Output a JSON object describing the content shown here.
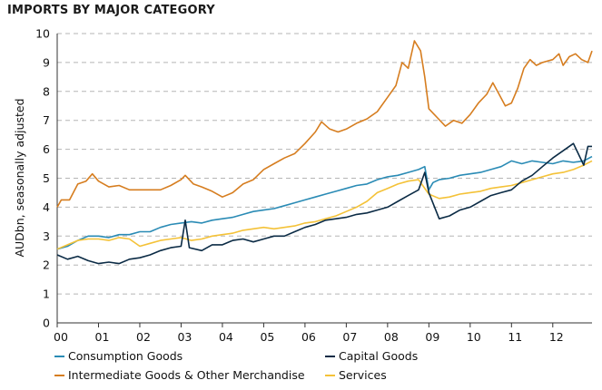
{
  "chart_data": {
    "type": "line",
    "title": "IMPORTS BY MAJOR CATEGORY",
    "xlabel": "",
    "ylabel": "AUDbn, seasonally adjusted",
    "xlim": [
      2000.0,
      2012.95
    ],
    "ylim": [
      0,
      10
    ],
    "yticks": [
      0,
      1,
      2,
      3,
      4,
      5,
      6,
      7,
      8,
      9,
      10
    ],
    "xtick_labels": [
      "00",
      "01",
      "02",
      "03",
      "04",
      "05",
      "06",
      "07",
      "08",
      "09",
      "10",
      "11",
      "12"
    ],
    "grid": true,
    "legend_position": "bottom",
    "series": [
      {
        "name": "Consumption Goods",
        "color": "#2a8bb5",
        "points": [
          [
            2000.0,
            2.55
          ],
          [
            2000.25,
            2.65
          ],
          [
            2000.5,
            2.85
          ],
          [
            2000.75,
            3.0
          ],
          [
            2001.0,
            3.0
          ],
          [
            2001.25,
            2.95
          ],
          [
            2001.5,
            3.05
          ],
          [
            2001.75,
            3.05
          ],
          [
            2002.0,
            3.15
          ],
          [
            2002.25,
            3.15
          ],
          [
            2002.5,
            3.3
          ],
          [
            2002.75,
            3.4
          ],
          [
            2003.0,
            3.45
          ],
          [
            2003.25,
            3.5
          ],
          [
            2003.5,
            3.45
          ],
          [
            2003.75,
            3.55
          ],
          [
            2004.0,
            3.6
          ],
          [
            2004.25,
            3.65
          ],
          [
            2004.5,
            3.75
          ],
          [
            2004.75,
            3.85
          ],
          [
            2005.0,
            3.9
          ],
          [
            2005.25,
            3.95
          ],
          [
            2005.5,
            4.05
          ],
          [
            2005.75,
            4.15
          ],
          [
            2006.0,
            4.25
          ],
          [
            2006.25,
            4.35
          ],
          [
            2006.5,
            4.45
          ],
          [
            2006.75,
            4.55
          ],
          [
            2007.0,
            4.65
          ],
          [
            2007.25,
            4.75
          ],
          [
            2007.5,
            4.8
          ],
          [
            2007.75,
            4.95
          ],
          [
            2008.0,
            5.05
          ],
          [
            2008.25,
            5.1
          ],
          [
            2008.5,
            5.2
          ],
          [
            2008.75,
            5.3
          ],
          [
            2008.9,
            5.4
          ],
          [
            2009.0,
            4.6
          ],
          [
            2009.1,
            4.85
          ],
          [
            2009.25,
            4.95
          ],
          [
            2009.5,
            5.0
          ],
          [
            2009.75,
            5.1
          ],
          [
            2010.0,
            5.15
          ],
          [
            2010.25,
            5.2
          ],
          [
            2010.5,
            5.3
          ],
          [
            2010.75,
            5.4
          ],
          [
            2011.0,
            5.6
          ],
          [
            2011.25,
            5.5
          ],
          [
            2011.5,
            5.6
          ],
          [
            2011.75,
            5.55
          ],
          [
            2012.0,
            5.5
          ],
          [
            2012.25,
            5.6
          ],
          [
            2012.5,
            5.55
          ],
          [
            2012.75,
            5.6
          ],
          [
            2012.95,
            5.75
          ]
        ]
      },
      {
        "name": "Capital Goods",
        "color": "#0b2b45",
        "points": [
          [
            2000.0,
            2.35
          ],
          [
            2000.25,
            2.2
          ],
          [
            2000.5,
            2.3
          ],
          [
            2000.75,
            2.15
          ],
          [
            2001.0,
            2.05
          ],
          [
            2001.25,
            2.1
          ],
          [
            2001.5,
            2.05
          ],
          [
            2001.75,
            2.2
          ],
          [
            2002.0,
            2.25
          ],
          [
            2002.25,
            2.35
          ],
          [
            2002.5,
            2.5
          ],
          [
            2002.75,
            2.6
          ],
          [
            2003.0,
            2.65
          ],
          [
            2003.1,
            3.55
          ],
          [
            2003.2,
            2.6
          ],
          [
            2003.5,
            2.5
          ],
          [
            2003.75,
            2.7
          ],
          [
            2004.0,
            2.7
          ],
          [
            2004.25,
            2.85
          ],
          [
            2004.5,
            2.9
          ],
          [
            2004.75,
            2.8
          ],
          [
            2005.0,
            2.9
          ],
          [
            2005.25,
            3.0
          ],
          [
            2005.5,
            3.0
          ],
          [
            2005.75,
            3.15
          ],
          [
            2006.0,
            3.3
          ],
          [
            2006.25,
            3.4
          ],
          [
            2006.5,
            3.55
          ],
          [
            2006.75,
            3.6
          ],
          [
            2007.0,
            3.65
          ],
          [
            2007.25,
            3.75
          ],
          [
            2007.5,
            3.8
          ],
          [
            2007.75,
            3.9
          ],
          [
            2008.0,
            4.0
          ],
          [
            2008.25,
            4.2
          ],
          [
            2008.5,
            4.4
          ],
          [
            2008.75,
            4.6
          ],
          [
            2008.9,
            5.2
          ],
          [
            2009.0,
            4.5
          ],
          [
            2009.25,
            3.6
          ],
          [
            2009.5,
            3.7
          ],
          [
            2009.75,
            3.9
          ],
          [
            2010.0,
            4.0
          ],
          [
            2010.25,
            4.2
          ],
          [
            2010.5,
            4.4
          ],
          [
            2010.75,
            4.5
          ],
          [
            2011.0,
            4.6
          ],
          [
            2011.25,
            4.9
          ],
          [
            2011.5,
            5.1
          ],
          [
            2011.75,
            5.4
          ],
          [
            2012.0,
            5.7
          ],
          [
            2012.25,
            5.95
          ],
          [
            2012.5,
            6.2
          ],
          [
            2012.75,
            5.45
          ],
          [
            2012.85,
            6.1
          ],
          [
            2012.95,
            6.1
          ]
        ]
      },
      {
        "name": "Intermediate Goods & Other Merchandise",
        "color": "#d67d1f",
        "points": [
          [
            2000.0,
            4.0
          ],
          [
            2000.1,
            4.25
          ],
          [
            2000.3,
            4.25
          ],
          [
            2000.5,
            4.8
          ],
          [
            2000.7,
            4.9
          ],
          [
            2000.85,
            5.15
          ],
          [
            2001.0,
            4.9
          ],
          [
            2001.25,
            4.7
          ],
          [
            2001.5,
            4.75
          ],
          [
            2001.75,
            4.6
          ],
          [
            2002.0,
            4.6
          ],
          [
            2002.25,
            4.6
          ],
          [
            2002.5,
            4.6
          ],
          [
            2002.75,
            4.75
          ],
          [
            2003.0,
            4.95
          ],
          [
            2003.1,
            5.1
          ],
          [
            2003.3,
            4.8
          ],
          [
            2003.5,
            4.7
          ],
          [
            2003.75,
            4.55
          ],
          [
            2004.0,
            4.35
          ],
          [
            2004.25,
            4.5
          ],
          [
            2004.5,
            4.8
          ],
          [
            2004.75,
            4.95
          ],
          [
            2005.0,
            5.3
          ],
          [
            2005.25,
            5.5
          ],
          [
            2005.5,
            5.7
          ],
          [
            2005.75,
            5.85
          ],
          [
            2006.0,
            6.2
          ],
          [
            2006.25,
            6.6
          ],
          [
            2006.4,
            6.95
          ],
          [
            2006.6,
            6.7
          ],
          [
            2006.8,
            6.6
          ],
          [
            2007.0,
            6.7
          ],
          [
            2007.25,
            6.9
          ],
          [
            2007.5,
            7.05
          ],
          [
            2007.75,
            7.3
          ],
          [
            2008.0,
            7.8
          ],
          [
            2008.2,
            8.2
          ],
          [
            2008.35,
            9.0
          ],
          [
            2008.5,
            8.8
          ],
          [
            2008.65,
            9.75
          ],
          [
            2008.8,
            9.4
          ],
          [
            2008.9,
            8.5
          ],
          [
            2009.0,
            7.4
          ],
          [
            2009.2,
            7.1
          ],
          [
            2009.4,
            6.8
          ],
          [
            2009.6,
            7.0
          ],
          [
            2009.8,
            6.9
          ],
          [
            2010.0,
            7.2
          ],
          [
            2010.2,
            7.6
          ],
          [
            2010.4,
            7.9
          ],
          [
            2010.55,
            8.3
          ],
          [
            2010.7,
            7.9
          ],
          [
            2010.85,
            7.5
          ],
          [
            2011.0,
            7.6
          ],
          [
            2011.15,
            8.1
          ],
          [
            2011.3,
            8.8
          ],
          [
            2011.45,
            9.1
          ],
          [
            2011.6,
            8.9
          ],
          [
            2011.75,
            9.0
          ],
          [
            2012.0,
            9.1
          ],
          [
            2012.15,
            9.3
          ],
          [
            2012.25,
            8.9
          ],
          [
            2012.4,
            9.2
          ],
          [
            2012.55,
            9.3
          ],
          [
            2012.7,
            9.1
          ],
          [
            2012.85,
            9.0
          ],
          [
            2012.95,
            9.4
          ]
        ]
      },
      {
        "name": "Services",
        "color": "#f4c238",
        "points": [
          [
            2000.0,
            2.55
          ],
          [
            2000.25,
            2.7
          ],
          [
            2000.5,
            2.85
          ],
          [
            2000.75,
            2.9
          ],
          [
            2001.0,
            2.9
          ],
          [
            2001.25,
            2.85
          ],
          [
            2001.5,
            2.95
          ],
          [
            2001.75,
            2.9
          ],
          [
            2002.0,
            2.65
          ],
          [
            2002.25,
            2.75
          ],
          [
            2002.5,
            2.85
          ],
          [
            2002.75,
            2.9
          ],
          [
            2003.0,
            2.95
          ],
          [
            2003.25,
            2.85
          ],
          [
            2003.5,
            2.9
          ],
          [
            2003.75,
            3.0
          ],
          [
            2004.0,
            3.05
          ],
          [
            2004.25,
            3.1
          ],
          [
            2004.5,
            3.2
          ],
          [
            2004.75,
            3.25
          ],
          [
            2005.0,
            3.3
          ],
          [
            2005.25,
            3.25
          ],
          [
            2005.5,
            3.3
          ],
          [
            2005.75,
            3.35
          ],
          [
            2006.0,
            3.45
          ],
          [
            2006.25,
            3.5
          ],
          [
            2006.5,
            3.6
          ],
          [
            2006.75,
            3.7
          ],
          [
            2007.0,
            3.85
          ],
          [
            2007.25,
            4.0
          ],
          [
            2007.5,
            4.2
          ],
          [
            2007.75,
            4.5
          ],
          [
            2008.0,
            4.65
          ],
          [
            2008.25,
            4.8
          ],
          [
            2008.5,
            4.9
          ],
          [
            2008.75,
            4.95
          ],
          [
            2009.0,
            4.45
          ],
          [
            2009.25,
            4.3
          ],
          [
            2009.5,
            4.35
          ],
          [
            2009.75,
            4.45
          ],
          [
            2010.0,
            4.5
          ],
          [
            2010.25,
            4.55
          ],
          [
            2010.5,
            4.65
          ],
          [
            2010.75,
            4.7
          ],
          [
            2011.0,
            4.75
          ],
          [
            2011.25,
            4.85
          ],
          [
            2011.5,
            4.95
          ],
          [
            2011.75,
            5.05
          ],
          [
            2012.0,
            5.15
          ],
          [
            2012.25,
            5.2
          ],
          [
            2012.5,
            5.3
          ],
          [
            2012.75,
            5.45
          ],
          [
            2012.95,
            5.6
          ]
        ]
      }
    ]
  }
}
